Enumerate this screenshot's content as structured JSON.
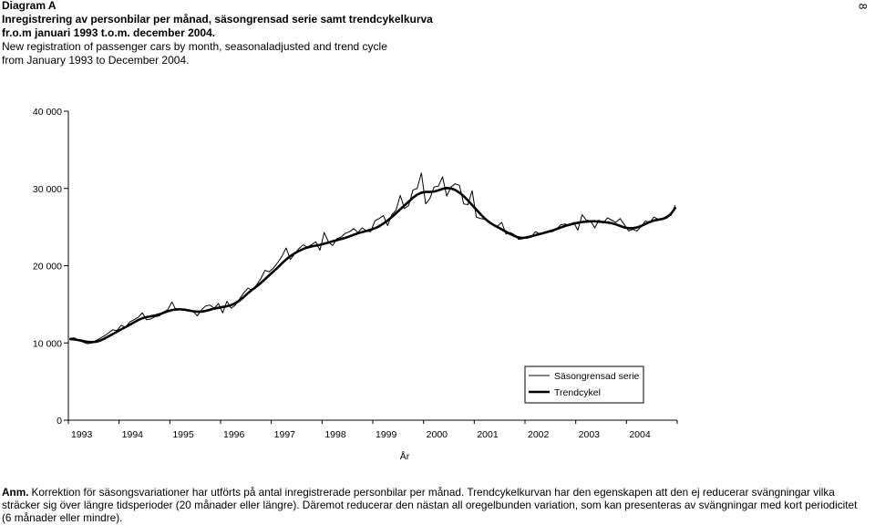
{
  "page_number": "8",
  "chart_data": {
    "type": "line",
    "title": "Diagram A",
    "subtitle": [
      "Inregistrering av personbilar per månad, säsongrensad serie samt trendcykelkurva",
      "fr.o.m januari 1993 t.o.m. december 2004.",
      "New registration of passenger cars by month, seasonaladjusted and trend cycle",
      "from January 1993 to December 2004."
    ],
    "xlabel": "År",
    "x_ticks": [
      "1993",
      "1994",
      "1995",
      "1996",
      "1997",
      "1998",
      "1999",
      "2000",
      "2001",
      "2002",
      "2003",
      "2004"
    ],
    "y_ticks": [
      {
        "value": 0,
        "label": "0"
      },
      {
        "value": 10000,
        "label": "10 000"
      },
      {
        "value": 20000,
        "label": "20 000"
      },
      {
        "value": 30000,
        "label": "30 000"
      },
      {
        "value": 40000,
        "label": "40 000"
      }
    ],
    "ylim": [
      0,
      40000
    ],
    "grid": false,
    "legend": "bottom-right",
    "series": [
      {
        "name": "Säsongrensad serie",
        "color": "#000000",
        "values": [
          10600,
          10650,
          10300,
          10100,
          9900,
          10000,
          10300,
          10600,
          10900,
          11300,
          11700,
          11600,
          12300,
          12000,
          12700,
          13000,
          13300,
          13900,
          13000,
          13100,
          13400,
          13500,
          14000,
          14300,
          15300,
          14200,
          14400,
          14300,
          14200,
          14100,
          13500,
          14300,
          14800,
          14900,
          14500,
          15100,
          13900,
          15400,
          14500,
          14900,
          15700,
          16500,
          17100,
          16800,
          17500,
          18300,
          19400,
          19200,
          19700,
          20400,
          21200,
          22300,
          20800,
          21500,
          22200,
          22700,
          22400,
          22700,
          23100,
          22000,
          24300,
          23100,
          22600,
          23500,
          23700,
          24200,
          24400,
          24800,
          24300,
          24900,
          24500,
          24400,
          25800,
          26100,
          26500,
          25200,
          26600,
          27200,
          29100,
          27400,
          27800,
          29800,
          30000,
          32000,
          28000,
          28700,
          30200,
          30300,
          31500,
          29000,
          30200,
          30600,
          30400,
          28000,
          27900,
          29700,
          26300,
          26100,
          26000,
          25600,
          25300,
          25100,
          25600,
          24100,
          24300,
          24000,
          23400,
          23500,
          23800,
          23800,
          24400,
          24100,
          24300,
          24500,
          24400,
          24800,
          25300,
          25400,
          25200,
          25600,
          24600,
          26600,
          25900,
          25800,
          24900,
          25900,
          25500,
          26200,
          25900,
          25600,
          26100,
          25300,
          24500,
          24700,
          24500,
          25100,
          25800,
          25600,
          26300,
          26000,
          26100,
          26400,
          26500,
          27800
        ]
      },
      {
        "name": "Trendcykel",
        "color": "#000000",
        "values": [
          10500,
          10450,
          10350,
          10250,
          10150,
          10100,
          10150,
          10300,
          10550,
          10850,
          11150,
          11450,
          11750,
          12050,
          12350,
          12650,
          12950,
          13200,
          13350,
          13450,
          13550,
          13700,
          13900,
          14100,
          14250,
          14350,
          14350,
          14300,
          14200,
          14100,
          14050,
          14050,
          14150,
          14300,
          14450,
          14550,
          14650,
          14750,
          14900,
          15150,
          15500,
          15950,
          16450,
          16900,
          17300,
          17750,
          18250,
          18750,
          19250,
          19750,
          20300,
          20800,
          21250,
          21600,
          21900,
          22150,
          22350,
          22500,
          22600,
          22700,
          22850,
          23000,
          23150,
          23300,
          23450,
          23600,
          23800,
          24000,
          24200,
          24350,
          24500,
          24650,
          24850,
          25100,
          25450,
          25850,
          26300,
          26800,
          27300,
          27800,
          28300,
          28800,
          29200,
          29450,
          29550,
          29550,
          29600,
          29750,
          29950,
          30050,
          30000,
          29800,
          29450,
          29000,
          28450,
          27850,
          27250,
          26650,
          26100,
          25650,
          25300,
          25000,
          24700,
          24400,
          24100,
          23850,
          23650,
          23600,
          23650,
          23800,
          23950,
          24100,
          24250,
          24400,
          24550,
          24750,
          24950,
          25150,
          25300,
          25450,
          25550,
          25650,
          25700,
          25750,
          25750,
          25700,
          25650,
          25600,
          25500,
          25350,
          25150,
          24950,
          24850,
          24850,
          24950,
          25150,
          25400,
          25650,
          25850,
          25950,
          26050,
          26250,
          26700,
          27450
        ]
      }
    ]
  },
  "note": {
    "label": "Anm.",
    "lines": [
      "Korrektion för säsongsvariationer har utförts på antal inregistrerade personbilar per månad. Trendcykelkurvan har den egenskapen att den ej reducerar svängningar vilka",
      "sträcker sig över längre tidsperioder (20 månader eller längre). Däremot reducerar den nästan all oregelbunden variation, som kan presenteras av svängningar med kort periodicitet",
      "(6 månader eller mindre)."
    ]
  }
}
